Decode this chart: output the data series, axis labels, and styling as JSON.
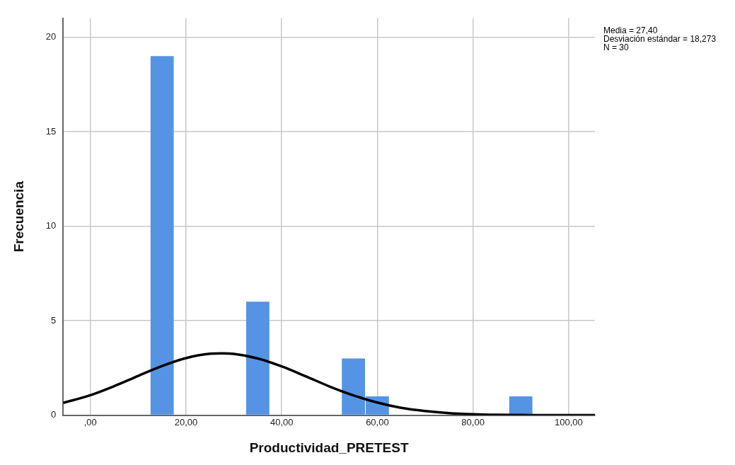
{
  "chart_data": {
    "type": "histogram",
    "xlabel": "Productividad_PRETEST",
    "ylabel": "Frecuencia",
    "bins": [
      12.5,
      17.5,
      22.5,
      27.5,
      32.5,
      37.5,
      42.5,
      47.5,
      52.5,
      57.5,
      62.5,
      67.5,
      72.5,
      77.5,
      82.5,
      87.5,
      92.5
    ],
    "values": [
      19,
      0,
      0,
      0,
      6,
      0,
      0,
      0,
      3,
      1,
      0,
      0,
      0,
      0,
      0,
      1
    ],
    "color": "#5594e4",
    "series": [
      {
        "type": "line",
        "color": "#000000",
        "x": [
          -5.7,
          0,
          5,
          10,
          15,
          20,
          25,
          27.4,
          30,
          35,
          40,
          45,
          50,
          55,
          60,
          65,
          70,
          75,
          80,
          85,
          90,
          95,
          100,
          105.5
        ],
        "values": [
          0.65,
          1.06,
          1.54,
          2.08,
          2.6,
          3.02,
          3.25,
          3.27,
          3.24,
          3.0,
          2.58,
          2.06,
          1.52,
          1.05,
          0.67,
          0.39,
          0.22,
          0.11,
          0.05,
          0.02,
          0.01,
          0,
          0,
          0
        ]
      }
    ],
    "xlim": [
      -5.7,
      105.5
    ],
    "ylim": [
      0,
      21
    ],
    "xticks": [
      {
        "value": 0,
        "label": ",00"
      },
      {
        "value": 20,
        "label": "20,00"
      },
      {
        "value": 40,
        "label": "40,00"
      },
      {
        "value": 60,
        "label": "60,00"
      },
      {
        "value": 80,
        "label": "80,00"
      },
      {
        "value": 100,
        "label": "100,00"
      }
    ],
    "yticks": [
      0,
      5,
      10,
      15,
      20
    ],
    "grid": true,
    "annotations": [
      "Media = 27,40",
      "Desviación estándar = 18,273",
      "N = 30"
    ]
  }
}
